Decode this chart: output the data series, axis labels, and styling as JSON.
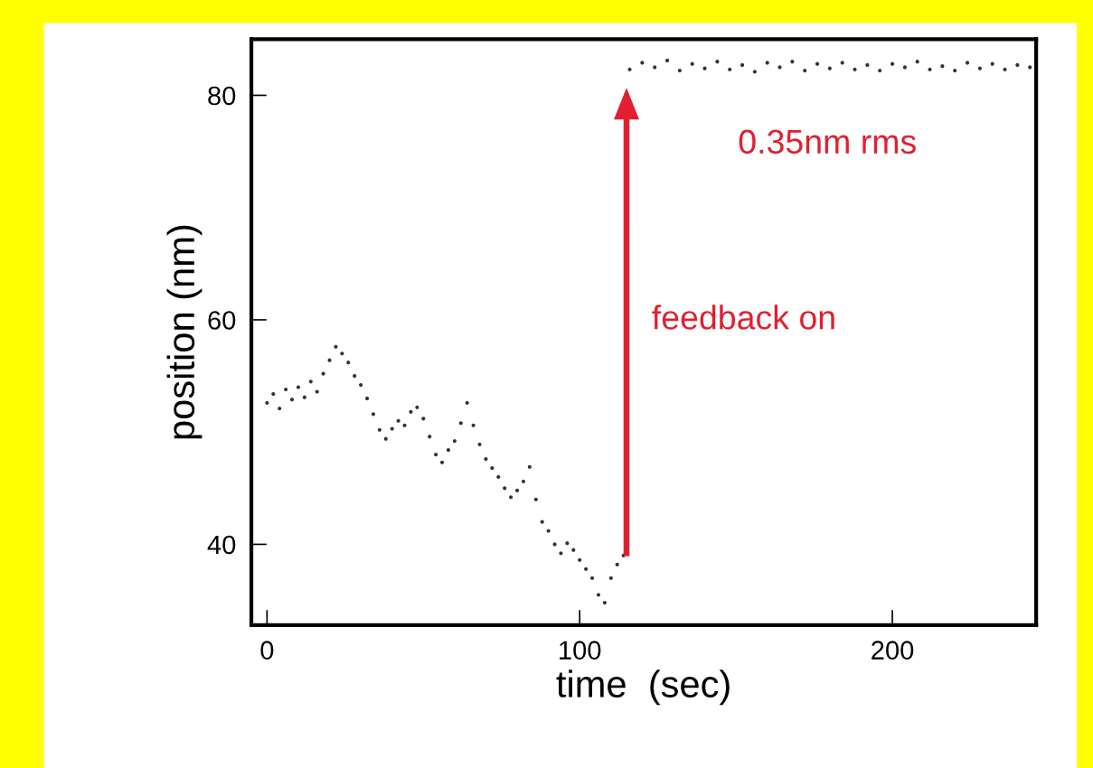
{
  "chart_data": {
    "type": "scatter",
    "xlabel": "time  (sec)",
    "ylabel": "position (nm)",
    "xlim": [
      -5,
      246
    ],
    "ylim": [
      32.8,
      85
    ],
    "xticks": [
      0,
      100,
      200
    ],
    "yticks": [
      40,
      60,
      80
    ],
    "grid": false,
    "marker": "circle",
    "x": [
      0,
      2,
      4,
      6,
      8,
      10,
      12,
      14,
      16,
      18,
      20,
      22,
      24,
      26,
      28,
      30,
      32,
      34,
      36,
      38,
      40,
      42,
      44,
      46,
      48,
      50,
      52,
      54,
      56,
      58,
      60,
      62,
      64,
      66,
      68,
      70,
      72,
      74,
      76,
      78,
      80,
      82,
      84,
      86,
      88,
      90,
      92,
      94,
      96,
      98,
      100,
      102,
      104,
      106,
      108,
      110,
      112,
      114,
      116,
      120,
      124,
      128,
      132,
      136,
      140,
      144,
      148,
      152,
      156,
      160,
      164,
      168,
      172,
      176,
      180,
      184,
      188,
      192,
      196,
      200,
      204,
      208,
      212,
      216,
      220,
      224,
      228,
      232,
      236,
      240,
      244
    ],
    "series": [
      {
        "color": "#333333",
        "values": [
          52.6,
          53.4,
          52.1,
          53.8,
          52.9,
          54.0,
          53.1,
          54.5,
          53.6,
          55.2,
          56.4,
          57.6,
          57.0,
          56.2,
          55.0,
          54.2,
          53.0,
          51.6,
          50.2,
          49.4,
          50.3,
          51.0,
          50.6,
          51.8,
          52.2,
          51.2,
          49.6,
          48.0,
          47.3,
          48.4,
          49.2,
          50.8,
          52.6,
          50.6,
          48.9,
          47.6,
          46.8,
          46.0,
          45.0,
          44.2,
          44.8,
          45.6,
          46.9,
          44.0,
          42.0,
          41.2,
          40.0,
          39.2,
          40.1,
          39.5,
          38.6,
          37.8,
          37.0,
          35.5,
          34.8,
          37.0,
          38.2,
          39.0,
          82.3,
          82.9,
          82.5,
          83.1,
          82.2,
          82.8,
          82.4,
          83.0,
          82.3,
          82.7,
          82.1,
          82.9,
          82.5,
          83.0,
          82.2,
          82.8,
          82.4,
          82.9,
          82.3,
          82.7,
          82.2,
          82.8,
          82.5,
          83.0,
          82.3,
          82.6,
          82.2,
          82.9,
          82.4,
          82.8,
          82.3,
          82.7,
          82.5
        ]
      }
    ],
    "annotations": [
      "feedback on",
      "0.35nm rms"
    ]
  }
}
